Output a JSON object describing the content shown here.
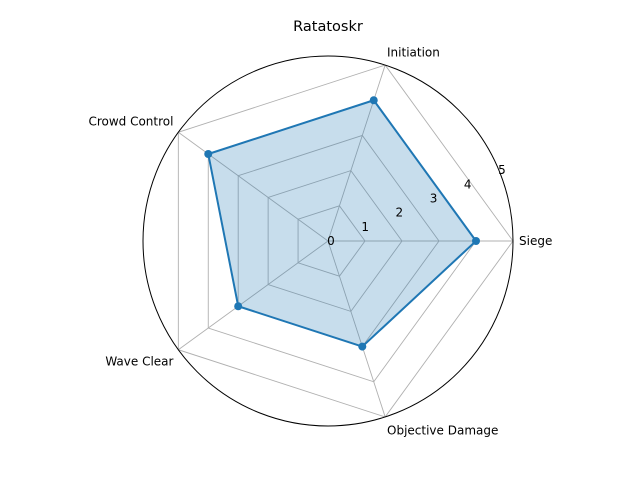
{
  "chart_data": {
    "type": "radar",
    "title": "Ratatoskr",
    "categories": [
      "Siege",
      "Initiation",
      "Crowd Control",
      "Wave Clear",
      "Objective Damage"
    ],
    "series": [
      {
        "values": [
          4.0,
          4.0,
          4.0,
          3.0,
          3.0
        ]
      }
    ],
    "rticks": [
      0,
      1,
      2,
      3,
      4,
      5
    ],
    "rlim": [
      0,
      5
    ],
    "grid": true,
    "colors": {
      "line": "#1f77b4",
      "fill": "#1f77b4",
      "grid": "#b0b0b0",
      "outer": "#000000"
    }
  }
}
